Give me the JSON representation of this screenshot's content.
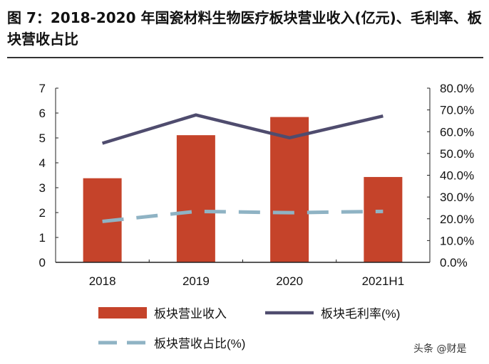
{
  "title": "图 7：2018-2020 年国瓷材料生物医疗板块营业收入(亿元)、毛利率、板块营收占比",
  "watermark": "头条 @财是",
  "chart_data": {
    "type": "bar+line",
    "categories": [
      "2018",
      "2019",
      "2020",
      "2021H1"
    ],
    "series": [
      {
        "name": "板块营业收入",
        "type": "bar",
        "axis": "left",
        "color": "#C5432A",
        "values": [
          3.38,
          5.11,
          5.84,
          3.43
        ]
      },
      {
        "name": "板块毛利率(%)",
        "type": "line",
        "axis": "right",
        "color": "#4F4C6E",
        "values": [
          54.7,
          67.7,
          57.2,
          67.2
        ]
      },
      {
        "name": "板块营收占比(%)",
        "type": "dashed-line",
        "axis": "right",
        "color": "#8FB3C4",
        "values": [
          18.8,
          23.4,
          22.8,
          23.4
        ]
      }
    ],
    "ylim_left": [
      0,
      7
    ],
    "yticks_left": [
      "0",
      "1",
      "2",
      "3",
      "4",
      "5",
      "6",
      "7"
    ],
    "ylim_right": [
      0,
      80
    ],
    "yticks_right": [
      "0.0%",
      "10.0%",
      "20.0%",
      "30.0%",
      "40.0%",
      "50.0%",
      "60.0%",
      "70.0%",
      "80.0%"
    ],
    "grid": false,
    "legend_placement": "bottom"
  }
}
